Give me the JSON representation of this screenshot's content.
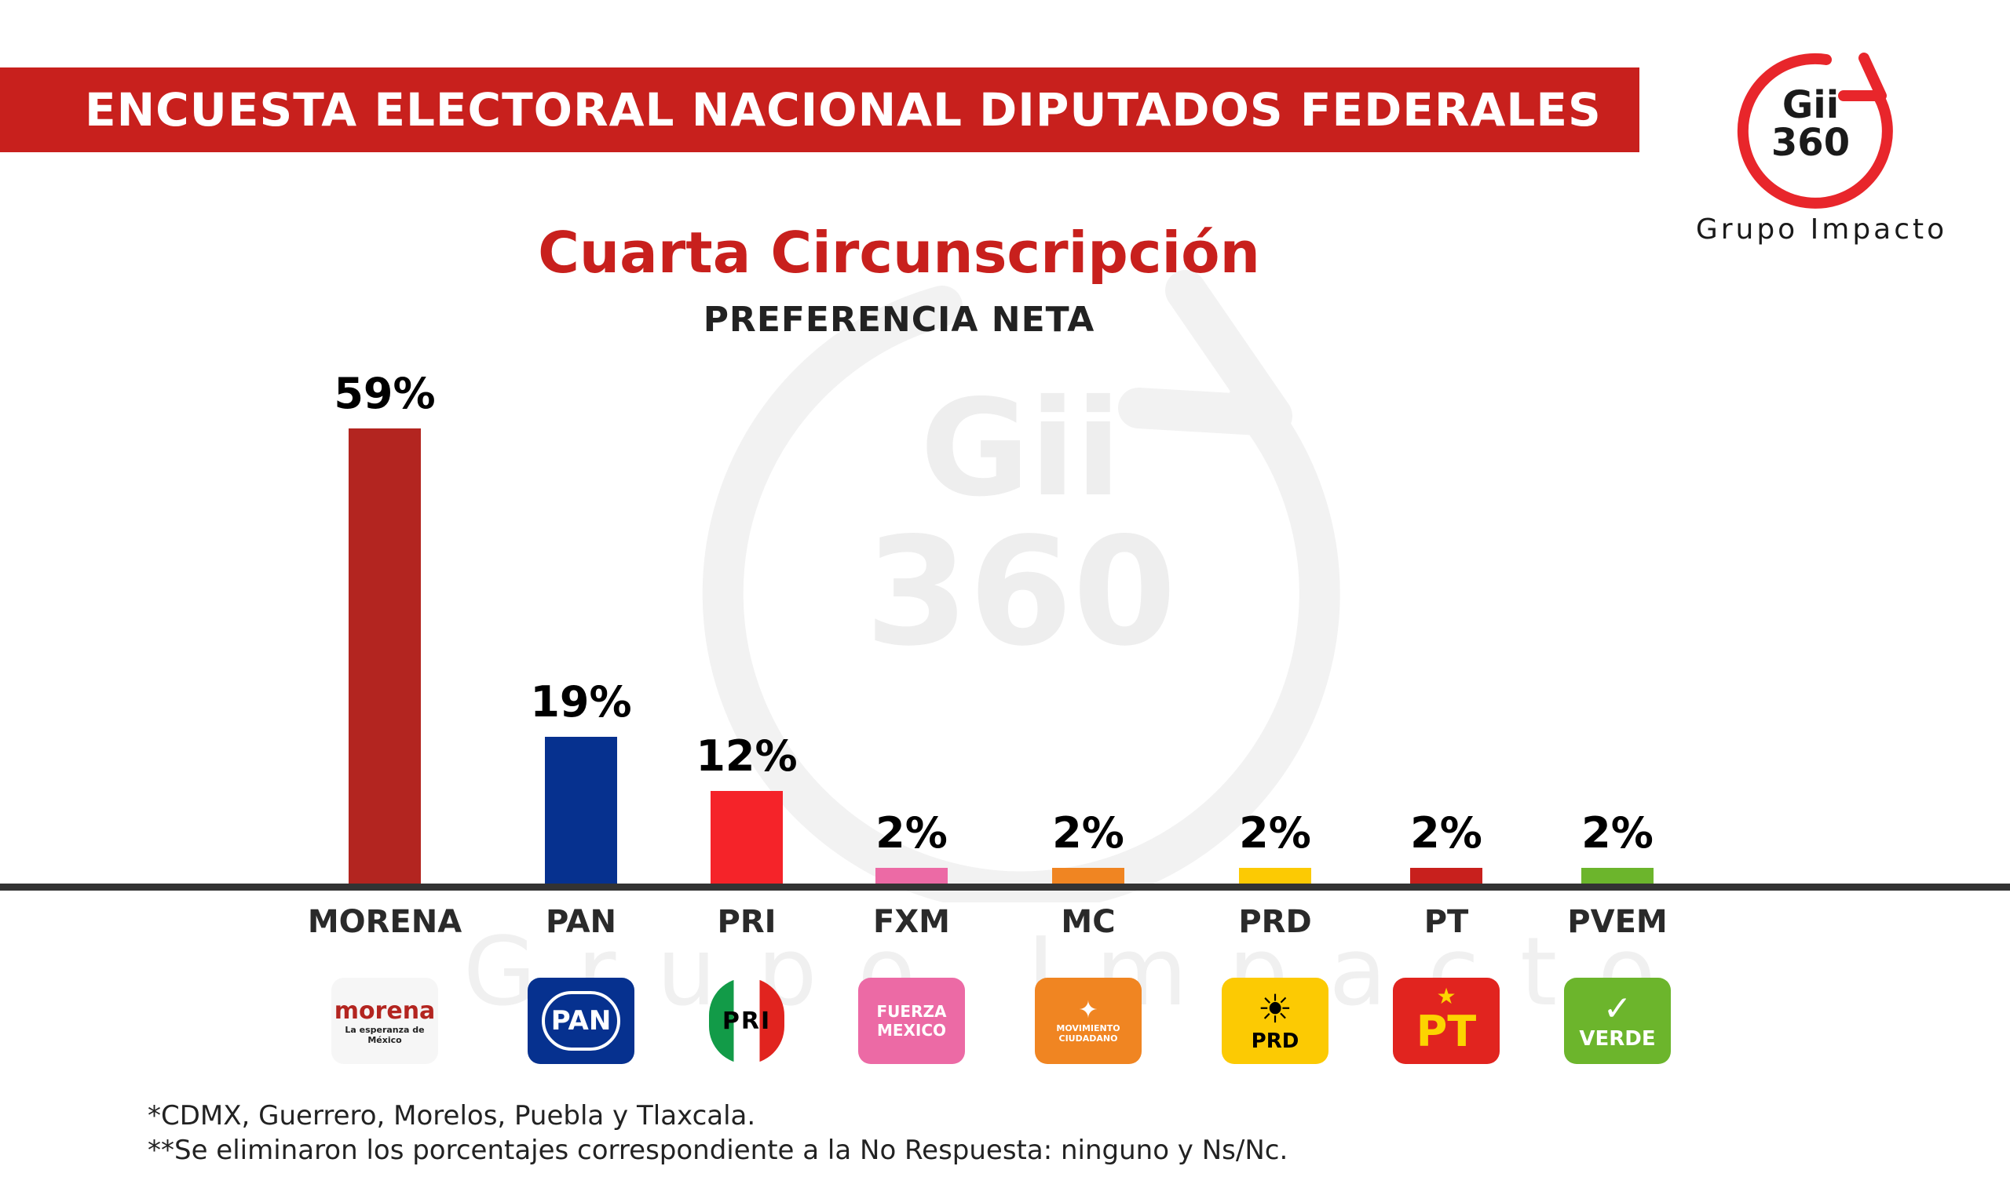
{
  "header": {
    "title": "ENCUESTA ELECTORAL NACIONAL DIPUTADOS FEDERALES"
  },
  "brand": {
    "logo_text_line1": "Gii",
    "logo_text_line2": "360",
    "tagline": "Grupo Impacto",
    "accent_color": "#e8262b",
    "watermark_line1": "Gii",
    "watermark_line2": "360",
    "watermark_word": "Grupo Impacto"
  },
  "chart_data": {
    "type": "bar",
    "title": "Cuarta Circunscripción",
    "subtitle": "PREFERENCIA NETA",
    "categories": [
      "MORENA",
      "PAN",
      "PRI",
      "FXM",
      "MC",
      "PRD",
      "PT",
      "PVEM"
    ],
    "values": [
      59,
      19,
      12,
      2,
      2,
      2,
      2,
      2
    ],
    "value_labels": [
      "59%",
      "19%",
      "12%",
      "2%",
      "2%",
      "2%",
      "2%",
      "2%"
    ],
    "colors": [
      "#b32520",
      "#06318f",
      "#f52329",
      "#ec6aa5",
      "#f08522",
      "#fcca03",
      "#c8201d",
      "#6cb52c"
    ],
    "ylim": [
      0,
      59
    ],
    "grid": false,
    "legend": "none"
  },
  "party_logos": [
    {
      "icon": "morena-logo",
      "line1": "morena",
      "line2": "La esperanza de México",
      "bg": "#f6f6f6",
      "fg": "#b32520"
    },
    {
      "icon": "pan-logo",
      "line1": "PAN",
      "line2": "",
      "bg": "#06318f",
      "fg": "#ffffff"
    },
    {
      "icon": "pri-logo",
      "line1": "PRI",
      "line2": "",
      "bg": "#ffffff",
      "fg": "#ffffff"
    },
    {
      "icon": "fxm-logo",
      "line1": "FUERZA",
      "line2": "MEXICO",
      "bg": "#ec6aa5",
      "fg": "#ffffff"
    },
    {
      "icon": "mc-logo",
      "line1": "MOVIMIENTO",
      "line2": "CIUDADANO",
      "bg": "#f08522",
      "fg": "#ffffff"
    },
    {
      "icon": "prd-logo",
      "line1": "PRD",
      "line2": "",
      "bg": "#fcca03",
      "fg": "#000000"
    },
    {
      "icon": "pt-logo",
      "line1": "PT",
      "line2": "",
      "bg": "#e1241f",
      "fg": "#fcd400"
    },
    {
      "icon": "verde-logo",
      "line1": "VERDE",
      "line2": "",
      "bg": "#6cb52c",
      "fg": "#ffffff"
    }
  ],
  "footnotes": {
    "line1": "*CDMX, Guerrero, Morelos, Puebla y Tlaxcala.",
    "line2": "**Se eliminaron los porcentajes correspondiente a la No Respuesta: ninguno y Ns/Nc."
  }
}
